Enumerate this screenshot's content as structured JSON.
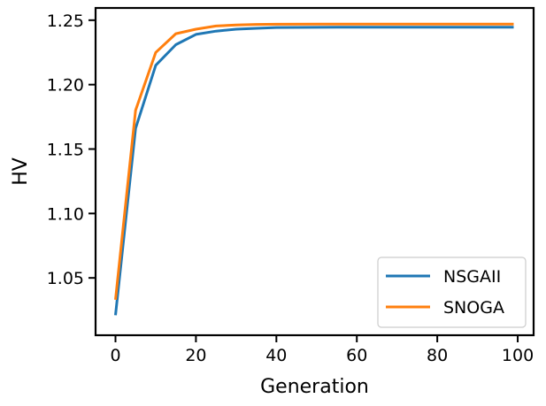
{
  "chart_data": {
    "type": "line",
    "title": "",
    "xlabel": "Generation",
    "ylabel": "HV",
    "xlim": [
      -4.95,
      103.95
    ],
    "ylim": [
      1.0055,
      1.2595
    ],
    "xticks": [
      0,
      20,
      40,
      60,
      80,
      100
    ],
    "xtick_labels": [
      "0",
      "20",
      "40",
      "60",
      "80",
      "100"
    ],
    "yticks": [
      1.05,
      1.1,
      1.15,
      1.2,
      1.25
    ],
    "ytick_labels": [
      "1.05",
      "1.10",
      "1.15",
      "1.20",
      "1.25"
    ],
    "grid": false,
    "legend": "lower-right",
    "series": [
      {
        "name": "NSGAII",
        "color": "#1f77b4",
        "x": [
          0,
          5,
          10,
          15,
          20,
          25,
          30,
          35,
          40,
          50,
          60,
          70,
          80,
          90,
          99
        ],
        "y": [
          1.021,
          1.166,
          1.215,
          1.231,
          1.239,
          1.2415,
          1.243,
          1.2437,
          1.2443,
          1.2445,
          1.2446,
          1.2446,
          1.2446,
          1.2446,
          1.2446
        ]
      },
      {
        "name": "SNOGA",
        "color": "#ff7f0e",
        "x": [
          0,
          5,
          10,
          15,
          20,
          25,
          30,
          35,
          40,
          50,
          60,
          70,
          80,
          90,
          99
        ],
        "y": [
          1.033,
          1.18,
          1.225,
          1.2395,
          1.243,
          1.2455,
          1.2463,
          1.2467,
          1.2469,
          1.247,
          1.247,
          1.247,
          1.247,
          1.247,
          1.247
        ]
      }
    ]
  }
}
